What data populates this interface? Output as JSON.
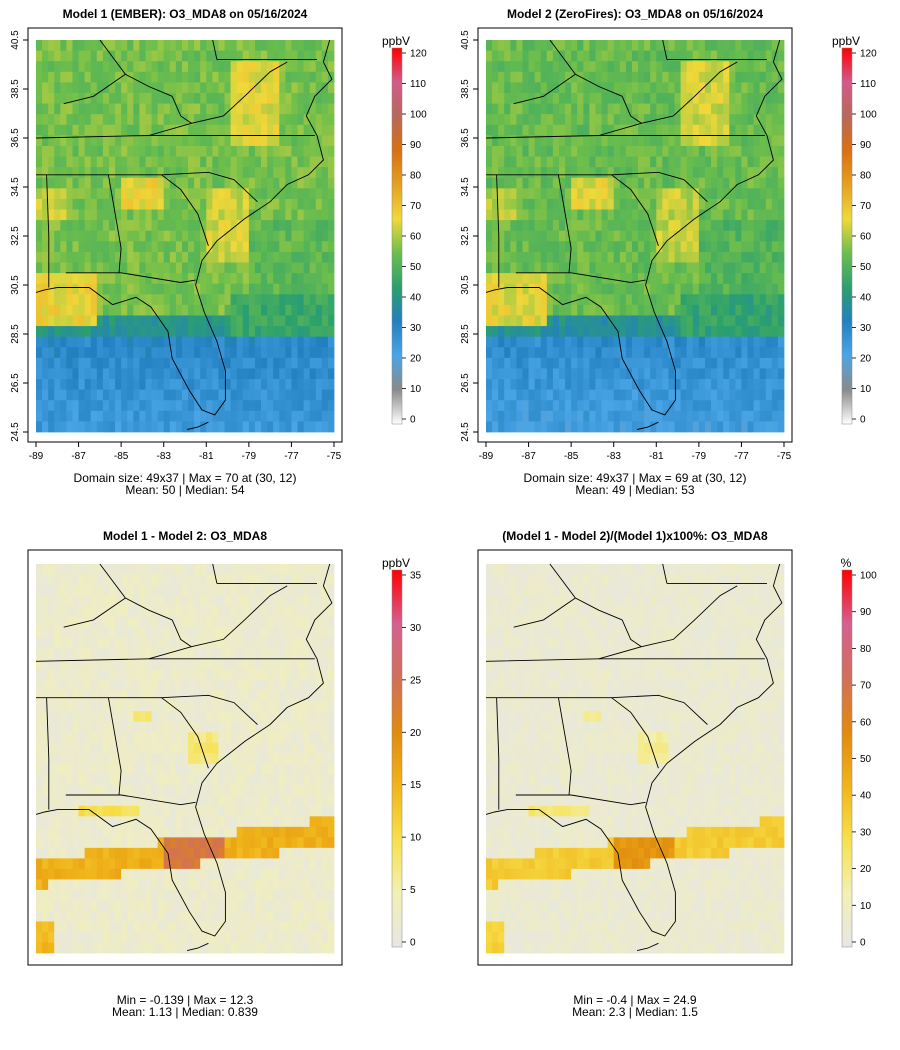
{
  "chart_data": [
    {
      "type": "heatmap",
      "title": "Model 1 (EMBER): O3_MDA8 on 05/16/2024",
      "lon_ticks": [
        "-89",
        "-87",
        "-85",
        "-83",
        "-81",
        "-79",
        "-77",
        "-75"
      ],
      "lat_ticks": [
        "24.5",
        "26.5",
        "28.5",
        "30.5",
        "32.5",
        "34.5",
        "36.5",
        "38.5",
        "40.5"
      ],
      "colorbar_unit": "ppbV",
      "colorbar_ticks": [
        0,
        10,
        20,
        30,
        40,
        50,
        60,
        70,
        80,
        90,
        100,
        110,
        120
      ],
      "colorbar_range": [
        0,
        120
      ],
      "field": "ozone",
      "stats_line1": "Domain size: 49x37 | Max = 70 at (30, 12)",
      "stats_line2": "Mean: 50 |  Median: 54"
    },
    {
      "type": "heatmap",
      "title": "Model 2 (ZeroFires): O3_MDA8 on 05/16/2024",
      "lon_ticks": [
        "-89",
        "-87",
        "-85",
        "-83",
        "-81",
        "-79",
        "-77",
        "-75"
      ],
      "lat_ticks": [
        "24.5",
        "26.5",
        "28.5",
        "30.5",
        "32.5",
        "34.5",
        "36.5",
        "38.5",
        "40.5"
      ],
      "colorbar_unit": "ppbV",
      "colorbar_ticks": [
        0,
        10,
        20,
        30,
        40,
        50,
        60,
        70,
        80,
        90,
        100,
        110,
        120
      ],
      "colorbar_range": [
        0,
        120
      ],
      "field": "ozone",
      "stats_line1": "Domain size: 49x37 | Max = 69 at (30, 12)",
      "stats_line2": "Mean: 49 |  Median: 53"
    },
    {
      "type": "heatmap",
      "title": "Model 1 - Model 2: O3_MDA8",
      "lon_ticks": [],
      "lat_ticks": [],
      "colorbar_unit": "ppbV",
      "colorbar_ticks": [
        0,
        5,
        10,
        15,
        20,
        25,
        30,
        35
      ],
      "colorbar_range": [
        0,
        35
      ],
      "field": "diff",
      "stats_line1": "Min = -0.139 | Max = 12.3",
      "stats_line2": "Mean: 1.13 |  Median: 0.839"
    },
    {
      "type": "heatmap",
      "title": "(Model 1 - Model 2)/(Model 1)x100%: O3_MDA8",
      "lon_ticks": [],
      "lat_ticks": [],
      "colorbar_unit": "%",
      "colorbar_ticks": [
        0,
        10,
        20,
        30,
        40,
        50,
        60,
        70,
        80,
        90,
        100
      ],
      "colorbar_range": [
        0,
        100
      ],
      "field": "pct",
      "stats_line1": "Min = -0.4 | Max = 24.9",
      "stats_line2": "Mean: 2.3 |  Median: 1.5"
    }
  ],
  "colors": {
    "ozone_scale": [
      "#ffffff",
      "#8a8a8a",
      "#4aa5e6",
      "#2280c0",
      "#2ba06e",
      "#6cbe4c",
      "#f0d83a",
      "#e6a020",
      "#d97010",
      "#b86858",
      "#d45a8a",
      "#ff0000"
    ],
    "diff_scale": [
      "#e6e6e6",
      "#f2f0b4",
      "#f7e04a",
      "#f0b41a",
      "#e08a0e",
      "#d0705a",
      "#d66090",
      "#ff0000"
    ],
    "frame": "#000000",
    "coast": "#000000"
  }
}
